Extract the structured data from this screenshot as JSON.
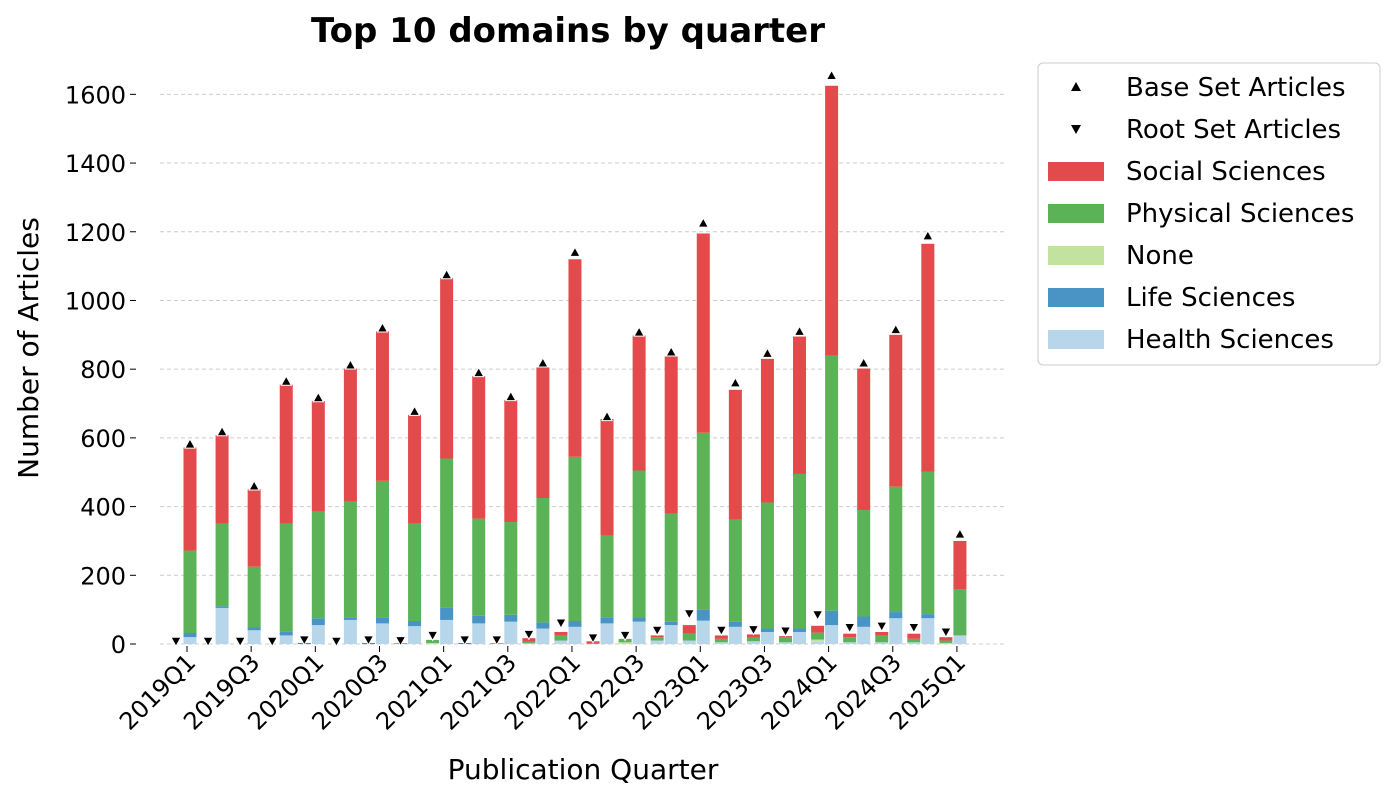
{
  "chart_data": {
    "type": "stacked_bar_pair",
    "title": "Top 10 domains by quarter",
    "x_label": "Publication Quarter",
    "y_label": "Number of Articles",
    "categories": [
      "2019Q1",
      null,
      "2019Q3",
      null,
      "2020Q1",
      null,
      "2020Q3",
      null,
      "2021Q1",
      null,
      "2021Q3",
      null,
      "2022Q1",
      null,
      "2022Q3",
      null,
      "2023Q1",
      null,
      "2023Q3",
      null,
      "2024Q1",
      null,
      "2024Q3",
      null,
      "2025Q1"
    ],
    "ylim": [
      0,
      1700
    ],
    "yticks": [
      0,
      200,
      400,
      600,
      800,
      1000,
      1200,
      1400,
      1600
    ],
    "grid": true,
    "legend": "outside-upper-right",
    "markers": [
      {
        "name": "Base Set Articles",
        "shape": "up",
        "color": "#000000",
        "values": [
          582,
          618,
          460,
          765,
          717,
          812,
          920,
          677,
          1075,
          790,
          720,
          818,
          1140,
          662,
          908,
          850,
          1225,
          760,
          846,
          910,
          1655,
          818,
          915,
          1188,
          320
        ]
      },
      {
        "name": "Root Set Articles",
        "shape": "down",
        "color": "#000000",
        "values": [
          8,
          8,
          8,
          8,
          12,
          8,
          12,
          10,
          25,
          12,
          12,
          28,
          61,
          18,
          25,
          40,
          88,
          40,
          42,
          38,
          85,
          48,
          52,
          48,
          35
        ]
      }
    ],
    "series": [
      {
        "name": "Social Sciences",
        "color": "#e24a4c",
        "values": [
          300,
          258,
          225,
          405,
          322,
          387,
          435,
          317,
          525,
          415,
          355,
          380,
          575,
          340,
          393,
          457,
          580,
          378,
          418,
          400,
          785,
          412,
          442,
          663,
          140
        ],
        "root_values": [
          0,
          0,
          0,
          0,
          3,
          0,
          3,
          2,
          0,
          3,
          2,
          10,
          10,
          5,
          0,
          5,
          25,
          10,
          10,
          3,
          20,
          10,
          10,
          15,
          10
        ]
      },
      {
        "name": "Physical Sciences",
        "color": "#5cb257",
        "values": [
          240,
          240,
          177,
          313,
          310,
          337,
          397,
          283,
          435,
          283,
          270,
          362,
          478,
          237,
          428,
          315,
          515,
          297,
          367,
          450,
          743,
          310,
          365,
          415,
          135
        ],
        "root_values": [
          0,
          0,
          0,
          0,
          0,
          0,
          0,
          0,
          9,
          0,
          0,
          5,
          15,
          3,
          10,
          10,
          20,
          10,
          10,
          15,
          20,
          15,
          20,
          10,
          7
        ]
      },
      {
        "name": "None",
        "color": "#c2e3a0",
        "values": [
          0,
          0,
          0,
          0,
          0,
          0,
          0,
          0,
          0,
          0,
          0,
          0,
          0,
          0,
          0,
          0,
          0,
          0,
          0,
          0,
          0,
          0,
          0,
          0,
          0
        ],
        "root_values": [
          0,
          0,
          0,
          0,
          0,
          0,
          0,
          0,
          0,
          0,
          0,
          0,
          0,
          0,
          2,
          0,
          0,
          0,
          0,
          0,
          5,
          0,
          0,
          0,
          0
        ]
      },
      {
        "name": "Life Sciences",
        "color": "#4a93c5",
        "values": [
          12,
          5,
          8,
          12,
          20,
          8,
          18,
          15,
          35,
          22,
          20,
          18,
          17,
          18,
          12,
          10,
          32,
          15,
          10,
          10,
          42,
          30,
          18,
          12,
          0
        ],
        "root_values": [
          0,
          0,
          0,
          0,
          0,
          0,
          0,
          0,
          0,
          0,
          0,
          0,
          0,
          0,
          0,
          0,
          0,
          0,
          0,
          0,
          0,
          0,
          0,
          0,
          0
        ]
      },
      {
        "name": "Health Sciences",
        "color": "#b8d6ea",
        "values": [
          20,
          105,
          40,
          25,
          55,
          70,
          60,
          52,
          70,
          60,
          65,
          45,
          50,
          60,
          65,
          55,
          68,
          50,
          35,
          35,
          55,
          50,
          75,
          75,
          25
        ],
        "root_values": [
          0,
          0,
          0,
          0,
          0,
          0,
          0,
          0,
          3,
          0,
          0,
          2,
          10,
          0,
          3,
          10,
          10,
          5,
          8,
          5,
          8,
          5,
          5,
          5,
          3
        ]
      }
    ]
  }
}
